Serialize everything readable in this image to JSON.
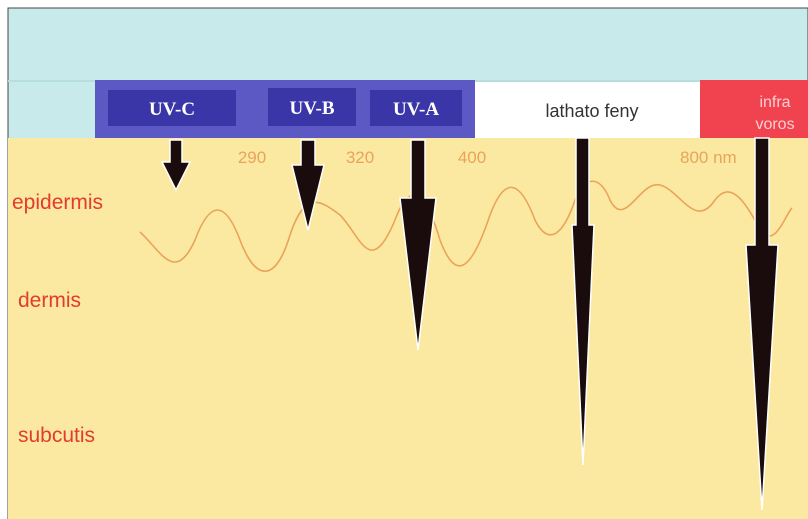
{
  "bands": [
    {
      "label": "UV-C"
    },
    {
      "label": "UV-B"
    },
    {
      "label": "UV-A"
    },
    {
      "label": "lathato feny"
    },
    {
      "label": [
        "infra",
        "voros"
      ]
    }
  ],
  "wavelengths": [
    "290",
    "320",
    "400",
    "800 nm"
  ],
  "layers": [
    "epidermis",
    "dermis",
    "subcutis"
  ]
}
